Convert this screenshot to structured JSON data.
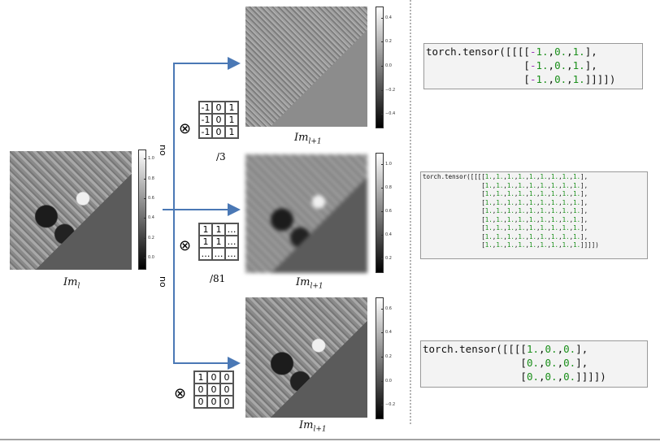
{
  "input": {
    "label": "Im",
    "label_sub": "l",
    "colorbar_ticks": [
      "1.0",
      "0.8",
      "0.6",
      "0.4",
      "0.2",
      "0.0"
    ]
  },
  "branch_labels": [
    "no",
    "no"
  ],
  "branches": [
    {
      "kernel": [
        [
          "-1",
          "0",
          "1"
        ],
        [
          "-1",
          "0",
          "1"
        ],
        [
          "-1",
          "0",
          "1"
        ]
      ],
      "divisor": "/3",
      "output_label": "Im",
      "output_sub": "l+1",
      "colorbar_ticks": [
        "0.4",
        "0.2",
        "0.0",
        "−0.2",
        "−0.4"
      ],
      "code_lines": [
        "torch.tensor([[[[-1.,0.,1.],",
        "                [-1.,0.,1.],",
        "                [-1.,0.,1.]]]])"
      ]
    },
    {
      "kernel": [
        [
          "1",
          "1",
          "…"
        ],
        [
          "1",
          "1",
          "…"
        ],
        [
          "…",
          "…",
          "…"
        ]
      ],
      "divisor": "/81",
      "output_label": "Im",
      "output_sub": "l+1",
      "colorbar_ticks": [
        "1.0",
        "0.8",
        "0.6",
        "0.4",
        "0.2"
      ],
      "code_lines": [
        "torch.tensor([[[[1.,1.,1.,1.,1.,1.,1.,1.,1.],",
        "                [1.,1.,1.,1.,1.,1.,1.,1.,1.],",
        "                [1.,1.,1.,1.,1.,1.,1.,1.,1.],",
        "                [1.,1.,1.,1.,1.,1.,1.,1.,1.],",
        "                [1.,1.,1.,1.,1.,1.,1.,1.,1.],",
        "                [1.,1.,1.,1.,1.,1.,1.,1.,1.],",
        "                [1.,1.,1.,1.,1.,1.,1.,1.,1.],",
        "                [1.,1.,1.,1.,1.,1.,1.,1.,1.],",
        "                [1.,1.,1.,1.,1.,1.,1.,1.,1.]]]])"
      ]
    },
    {
      "kernel": [
        [
          "1",
          "0",
          "0"
        ],
        [
          "0",
          "0",
          "0"
        ],
        [
          "0",
          "0",
          "0"
        ]
      ],
      "divisor": "",
      "output_label": "Im",
      "output_sub": "l+1",
      "colorbar_ticks": [
        "0.6",
        "0.4",
        "0.2",
        "0.0",
        "−0.2"
      ],
      "code_lines": [
        "torch.tensor([[[[1.,0.,0.],",
        "                [0.,0.,0.],",
        "                [0.,0.,0.]]]])"
      ]
    }
  ],
  "colors": {
    "arrow": "#4a78b5",
    "code_bg": "#f3f3f3",
    "number": "#1a8f1a",
    "negative": "#9b30b8"
  }
}
